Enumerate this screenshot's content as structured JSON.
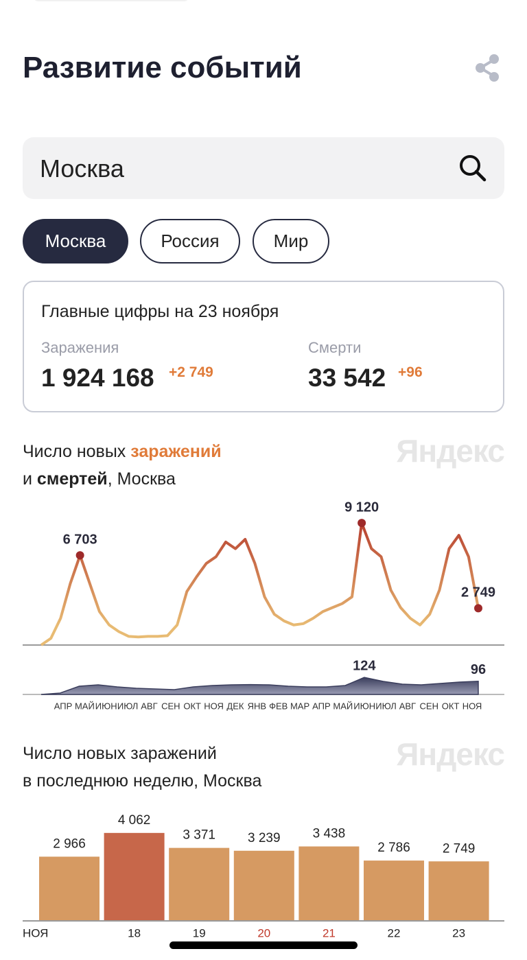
{
  "header": {
    "title": "Развитие событий"
  },
  "search": {
    "value": "Москва"
  },
  "tabs": [
    "Москва",
    "Россия",
    "Мир"
  ],
  "summary": {
    "title": "Главные цифры на 23 ноября",
    "cases": {
      "label": "Заражения",
      "value": "1 924 168",
      "delta": "+2 749"
    },
    "deaths": {
      "label": "Смерти",
      "value": "33 542",
      "delta": "+96"
    }
  },
  "chart_data": [
    {
      "type": "line",
      "title": [
        "Число новых ",
        "заражений",
        "и ",
        "смертей",
        ", Москва"
      ],
      "watermark": "Яндекс",
      "month_labels": [
        "АПР",
        "МАЙ",
        "ИЮН",
        "ИЮЛ",
        "АВГ",
        "СЕН",
        "ОКТ",
        "НОЯ",
        "ДЕК",
        "ЯНВ",
        "ФЕВ",
        "МАР",
        "АПР",
        "МАЙ",
        "ИЮН",
        "ИЮЛ",
        "АВГ",
        "СЕН",
        "ОКТ",
        "НОЯ"
      ],
      "ylim": [
        0,
        10000
      ],
      "y2lim": [
        0,
        150
      ],
      "series": [
        {
          "color": "#b5392c",
          "color_low": "#e8bb73",
          "values": [
            0,
            500,
            2000,
            4600,
            6703,
            4600,
            2500,
            1500,
            1000,
            650,
            600,
            650,
            650,
            700,
            1500,
            4000,
            5100,
            6100,
            6600,
            7700,
            7200,
            7900,
            6100,
            3600,
            2300,
            1800,
            1500,
            1600,
            2000,
            2500,
            2800,
            3100,
            3600,
            9120,
            7200,
            6600,
            4100,
            2800,
            2000,
            1500,
            2300,
            4100,
            7200,
            8200,
            6600,
            2749
          ],
          "value_labels": [
            null,
            null,
            null,
            null,
            "6 703",
            null,
            null,
            null,
            null,
            null,
            null,
            null,
            null,
            null,
            null,
            null,
            null,
            null,
            null,
            null,
            null,
            null,
            null,
            null,
            null,
            null,
            null,
            null,
            null,
            null,
            null,
            null,
            null,
            "9 120",
            null,
            null,
            null,
            null,
            null,
            null,
            null,
            null,
            null,
            null,
            null,
            "2 749"
          ]
        },
        {
          "color": "#3a3d5c",
          "axis": "y2",
          "values": [
            0,
            10,
            60,
            70,
            55,
            45,
            40,
            35,
            55,
            65,
            70,
            72,
            70,
            60,
            55,
            55,
            65,
            124,
            95,
            75,
            70,
            80,
            90,
            96
          ],
          "value_labels": [
            null,
            null,
            null,
            null,
            null,
            null,
            null,
            null,
            null,
            null,
            null,
            null,
            null,
            null,
            null,
            null,
            null,
            "124",
            null,
            null,
            null,
            null,
            null,
            "96"
          ]
        }
      ]
    },
    {
      "type": "bar",
      "title": [
        "Число новых заражений",
        "в последнюю неделю, Москва"
      ],
      "watermark": "Яндекс",
      "categories": [
        "НОЯ",
        "18",
        "19",
        "20",
        "21",
        "22",
        "23"
      ],
      "category_colors": [
        "#222222",
        "#222222",
        "#222222",
        "#c0392b",
        "#c0392b",
        "#222222",
        "#222222"
      ],
      "values": [
        2966,
        4062,
        3371,
        3239,
        3438,
        2786,
        2749
      ],
      "value_labels": [
        "2 966",
        "4 062",
        "3 371",
        "3 239",
        "3 438",
        "2 786",
        "2 749"
      ],
      "colors": [
        "#d69a62",
        "#c7674a",
        "#d69a62",
        "#d69a62",
        "#d69a62",
        "#d69a62",
        "#d69a62"
      ],
      "ylim": [
        0,
        4500
      ]
    }
  ]
}
